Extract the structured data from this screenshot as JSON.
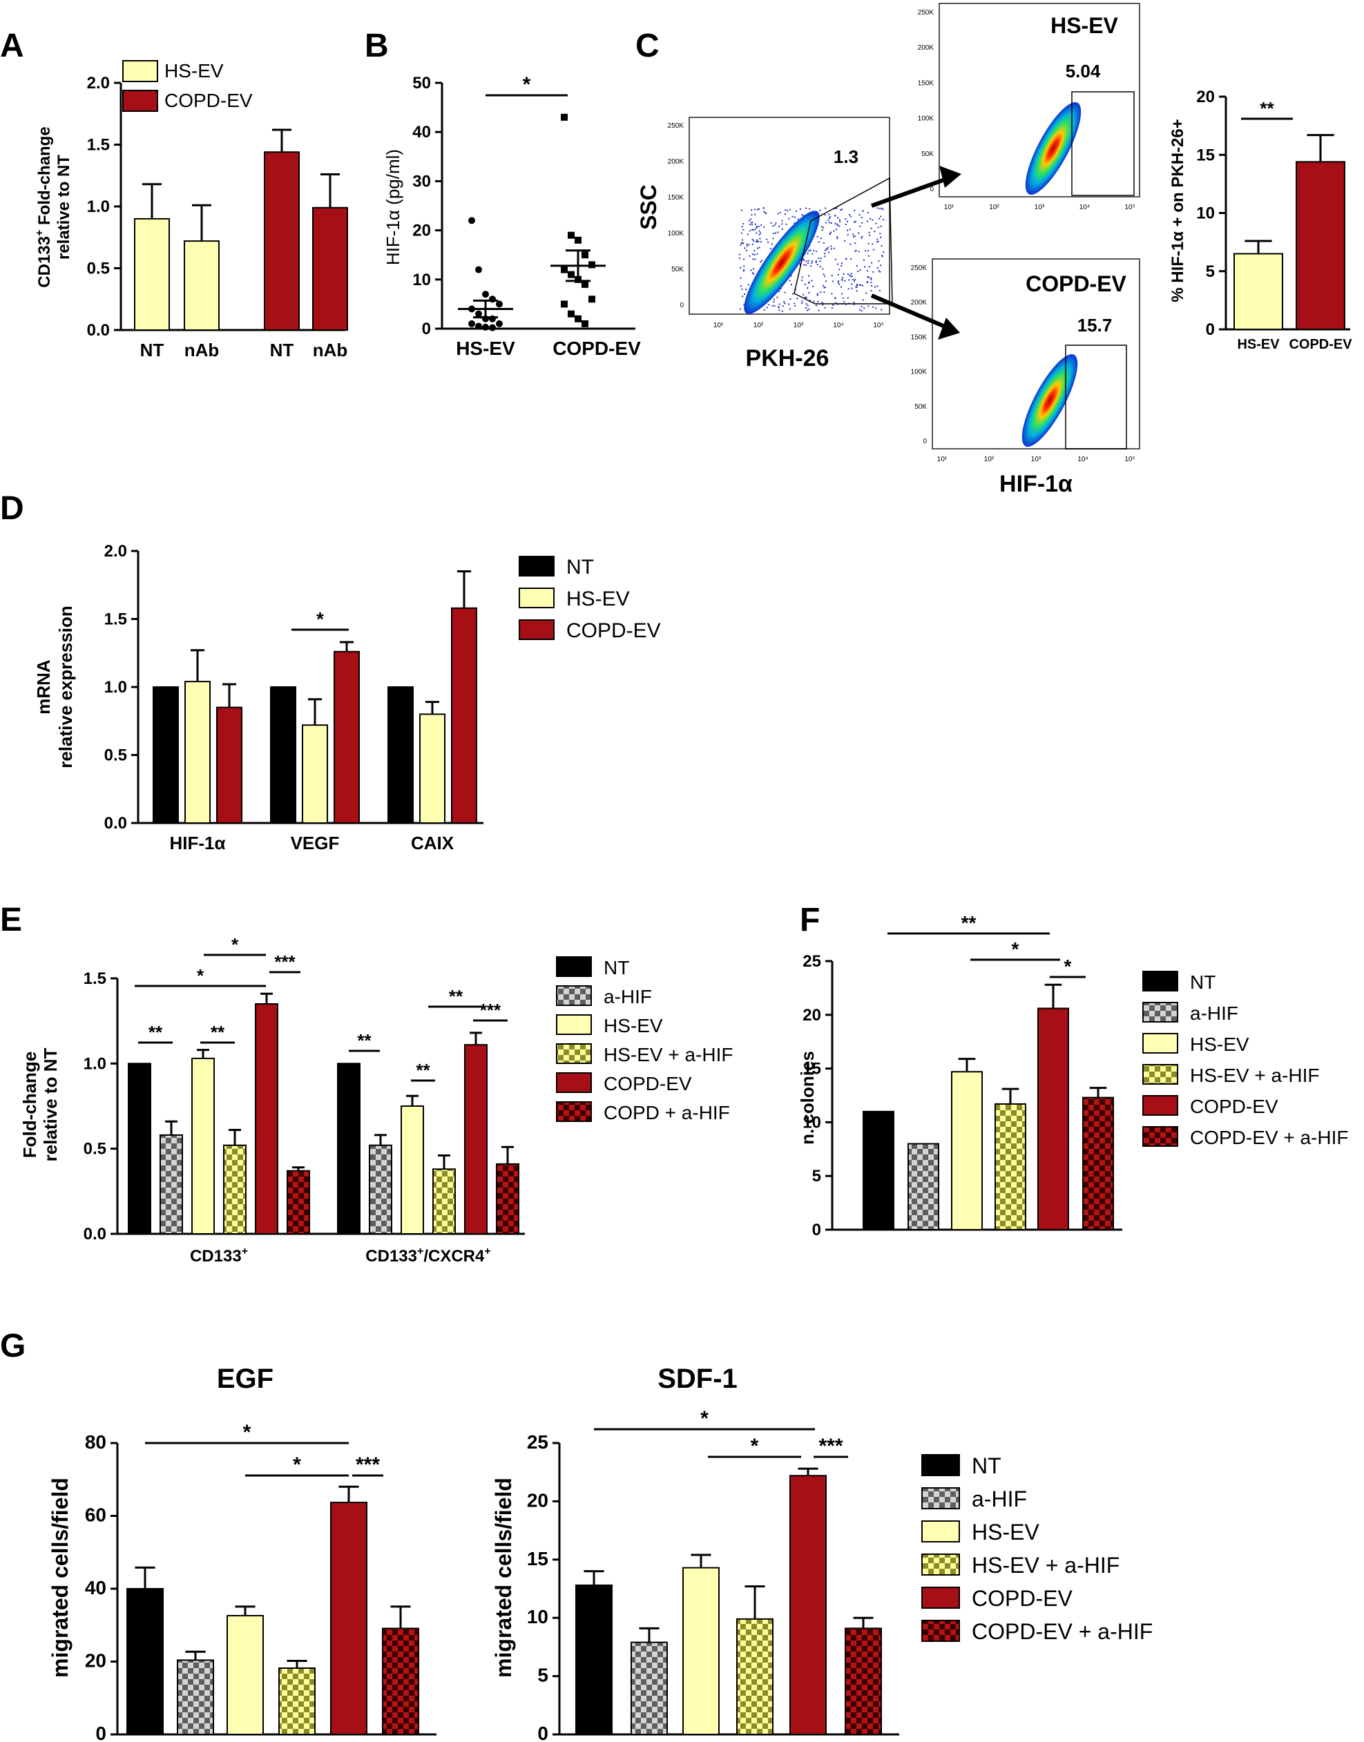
{
  "colors": {
    "nt": "#000000",
    "hs": "#ffffb3",
    "copd": "#a50f15",
    "checker_light": "#cfcfcf",
    "checker_dark": "#6a6a6a",
    "hs_check_a": "#ffff99",
    "hs_check_b": "#8b8b2a",
    "copd_check_a": "#b01010",
    "copd_check_b": "#3a0000"
  },
  "panels": {
    "A": {
      "letter": "A"
    },
    "B": {
      "letter": "B"
    },
    "C": {
      "letter": "C"
    },
    "D": {
      "letter": "D"
    },
    "E": {
      "letter": "E"
    },
    "F": {
      "letter": "F"
    },
    "G": {
      "letter": "G"
    }
  },
  "chart_data": [
    {
      "id": "A",
      "type": "bar",
      "ylabel_line1": "CD133",
      "ylabel_sup": "+",
      "ylabel_line1_rest": " Fold-change",
      "ylabel_line2": "relative to NT",
      "ylim": [
        0,
        2.0
      ],
      "ticks": [
        "0.0",
        "0.5",
        "1.0",
        "1.5",
        "2.0"
      ],
      "tick_values": [
        0,
        0.5,
        1.0,
        1.5,
        2.0
      ],
      "categories": [
        "NT",
        "nAb",
        "NT",
        "nAb"
      ],
      "bars": [
        {
          "value": 0.9,
          "err": 0.28,
          "series": "HS-EV"
        },
        {
          "value": 0.72,
          "err": 0.29,
          "series": "HS-EV"
        },
        {
          "value": 1.44,
          "err": 0.18,
          "series": "COPD-EV"
        },
        {
          "value": 0.99,
          "err": 0.27,
          "series": "COPD-EV"
        }
      ],
      "legend": [
        "HS-EV",
        "COPD-EV"
      ]
    },
    {
      "id": "B",
      "type": "scatter",
      "ylabel": "HIF-1α (pg/ml)",
      "ylim": [
        0,
        50
      ],
      "ticks": [
        "0",
        "10",
        "20",
        "30",
        "40",
        "50"
      ],
      "tick_values": [
        0,
        10,
        20,
        30,
        40,
        50
      ],
      "categories": [
        "HS-EV",
        "COPD-EV"
      ],
      "series": [
        {
          "name": "HS-EV",
          "mean": 4.0,
          "sem": 1.7,
          "values": [
            22,
            12,
            7,
            6,
            5,
            4,
            3,
            2,
            2,
            1,
            1,
            0.5,
            0.3,
            0.2
          ]
        },
        {
          "name": "COPD-EV",
          "mean": 12.8,
          "sem": 3.1,
          "values": [
            43,
            19,
            18,
            15,
            13,
            12,
            11,
            10,
            9,
            6,
            5,
            3,
            2,
            1
          ]
        }
      ],
      "significance": [
        {
          "label": "*"
        }
      ]
    },
    {
      "id": "C",
      "type": "bar",
      "ylabel": "% HIF-1α + on PKH-26+",
      "ylim": [
        0,
        20
      ],
      "ticks": [
        "0",
        "5",
        "10",
        "15",
        "20"
      ],
      "tick_values": [
        0,
        5,
        10,
        15,
        20
      ],
      "categories": [
        "HS-EV",
        "COPD-EV"
      ],
      "bars": [
        {
          "value": 6.5,
          "err": 1.1,
          "series": "HS-EV"
        },
        {
          "value": 14.4,
          "err": 2.3,
          "series": "COPD-EV"
        }
      ],
      "significance": [
        {
          "label": "**"
        }
      ],
      "flow": {
        "main": {
          "xlabel": "PKH-26",
          "ylabel": "SSC",
          "gate_value": "1.3",
          "yticks": [
            "250K",
            "200K",
            "150K",
            "100K",
            "50K",
            "0"
          ],
          "xticks": [
            "10¹",
            "10²",
            "10³",
            "10⁴",
            "10⁵"
          ]
        },
        "hs": {
          "title": "HS-EV",
          "gate_value": "5.04",
          "yticks": [
            "250K",
            "200K",
            "150K",
            "100K",
            "50K",
            "0"
          ],
          "xticks": [
            "10¹",
            "10²",
            "10³",
            "10⁴",
            "10⁵"
          ]
        },
        "copd": {
          "title": "COPD-EV",
          "gate_value": "15.7",
          "xlabel": "HIF-1α",
          "yticks": [
            "250K",
            "200K",
            "150K",
            "100K",
            "50K",
            "0"
          ],
          "xticks": [
            "10¹",
            "10²",
            "10³",
            "10⁴",
            "10⁵"
          ]
        }
      }
    },
    {
      "id": "D",
      "type": "bar",
      "ylabel_line1": "mRNA",
      "ylabel_line2": "relative expression",
      "ylim": [
        0,
        2.0
      ],
      "ticks": [
        "0.0",
        "0.5",
        "1.0",
        "1.5",
        "2.0"
      ],
      "tick_values": [
        0,
        0.5,
        1.0,
        1.5,
        2.0
      ],
      "categories": [
        "HIF-1α",
        "VEGF",
        "CAIX"
      ],
      "series": [
        {
          "name": "NT",
          "values": [
            1.0,
            1.0,
            1.0
          ],
          "err": [
            0,
            0,
            0
          ]
        },
        {
          "name": "HS-EV",
          "values": [
            1.04,
            0.72,
            0.8
          ],
          "err": [
            0.23,
            0.19,
            0.09
          ]
        },
        {
          "name": "COPD-EV",
          "values": [
            0.85,
            1.26,
            1.58
          ],
          "err": [
            0.17,
            0.07,
            0.27
          ]
        }
      ],
      "legend": [
        "NT",
        "HS-EV",
        "COPD-EV"
      ],
      "significance": [
        {
          "label": "*"
        }
      ]
    },
    {
      "id": "E",
      "type": "bar",
      "ylabel_line1": "Fold-change",
      "ylabel_line2": "relative to NT",
      "ylim": [
        0,
        1.5
      ],
      "ticks": [
        "0.0",
        "0.5",
        "1.0",
        "1.5"
      ],
      "tick_values": [
        0,
        0.5,
        1.0,
        1.5
      ],
      "categories": [
        {
          "base": "CD133",
          "sup": "+",
          "rest": "",
          "sup2": ""
        },
        {
          "base": "CD133",
          "sup": "+",
          "rest": "/CXCR4",
          "sup2": "+"
        }
      ],
      "series": [
        {
          "name": "NT",
          "values": [
            1.0,
            1.0
          ],
          "err": [
            0,
            0
          ]
        },
        {
          "name": "a-HIF",
          "values": [
            0.58,
            0.52
          ],
          "err": [
            0.08,
            0.06
          ]
        },
        {
          "name": "HS-EV",
          "values": [
            1.03,
            0.75
          ],
          "err": [
            0.05,
            0.06
          ]
        },
        {
          "name": "HS-EV + a-HIF",
          "values": [
            0.52,
            0.38
          ],
          "err": [
            0.09,
            0.08
          ]
        },
        {
          "name": "COPD-EV",
          "values": [
            1.35,
            1.11
          ],
          "err": [
            0.06,
            0.07
          ]
        },
        {
          "name": "COPD + a-HIF",
          "values": [
            0.37,
            0.41
          ],
          "err": [
            0.02,
            0.1
          ]
        }
      ],
      "legend": [
        "NT",
        "a-HIF",
        "HS-EV",
        "HS-EV + a-HIF",
        "COPD-EV",
        "COPD + a-HIF"
      ],
      "significance": [
        {
          "label": "**"
        },
        {
          "label": "**"
        },
        {
          "label": "*"
        },
        {
          "label": "*"
        },
        {
          "label": "***"
        },
        {
          "label": "**"
        },
        {
          "label": "**"
        },
        {
          "label": "**"
        },
        {
          "label": "***"
        }
      ]
    },
    {
      "id": "F",
      "type": "bar",
      "ylabel": "n. colonies",
      "ylim": [
        0,
        25
      ],
      "ticks": [
        "0",
        "5",
        "10",
        "15",
        "20",
        "25"
      ],
      "tick_values": [
        0,
        5,
        10,
        15,
        20,
        25
      ],
      "series": [
        {
          "name": "NT",
          "values": [
            11.0
          ],
          "err": [
            0
          ]
        },
        {
          "name": "a-HIF",
          "values": [
            8.0
          ],
          "err": [
            0
          ]
        },
        {
          "name": "HS-EV",
          "values": [
            14.7
          ],
          "err": [
            1.2
          ]
        },
        {
          "name": "HS-EV + a-HIF",
          "values": [
            11.7
          ],
          "err": [
            1.4
          ]
        },
        {
          "name": "COPD-EV",
          "values": [
            20.6
          ],
          "err": [
            2.2
          ]
        },
        {
          "name": "COPD-EV + a-HIF",
          "values": [
            12.3
          ],
          "err": [
            0.9
          ]
        }
      ],
      "legend": [
        "NT",
        "a-HIF",
        "HS-EV",
        "HS-EV + a-HIF",
        "COPD-EV",
        "COPD-EV + a-HIF"
      ],
      "significance": [
        {
          "label": "**"
        },
        {
          "label": "*"
        },
        {
          "label": "*"
        }
      ]
    },
    {
      "id": "G1",
      "type": "bar",
      "title": "EGF",
      "ylabel": "migrated cells/field",
      "ylim": [
        0,
        80
      ],
      "ticks": [
        "0",
        "20",
        "40",
        "60",
        "80"
      ],
      "tick_values": [
        0,
        20,
        40,
        60,
        80
      ],
      "series": [
        {
          "name": "NT",
          "values": [
            40.0
          ],
          "err": [
            5.8
          ]
        },
        {
          "name": "a-HIF",
          "values": [
            20.4
          ],
          "err": [
            2.3
          ]
        },
        {
          "name": "HS-EV",
          "values": [
            32.6
          ],
          "err": [
            2.5
          ]
        },
        {
          "name": "HS-EV + a-HIF",
          "values": [
            18.2
          ],
          "err": [
            2.0
          ]
        },
        {
          "name": "COPD-EV",
          "values": [
            63.7
          ],
          "err": [
            4.3
          ]
        },
        {
          "name": "COPD-EV + a-HIF",
          "values": [
            29.1
          ],
          "err": [
            6.0
          ]
        }
      ],
      "significance": [
        {
          "label": "*"
        },
        {
          "label": "*"
        },
        {
          "label": "***"
        }
      ]
    },
    {
      "id": "G2",
      "type": "bar",
      "title": "SDF-1",
      "ylabel": "migrated cells/field",
      "ylim": [
        0,
        25
      ],
      "ticks": [
        "0",
        "5",
        "10",
        "15",
        "20",
        "25"
      ],
      "tick_values": [
        0,
        5,
        10,
        15,
        20,
        25
      ],
      "series": [
        {
          "name": "NT",
          "values": [
            12.8
          ],
          "err": [
            1.2
          ]
        },
        {
          "name": "a-HIF",
          "values": [
            7.9
          ],
          "err": [
            1.2
          ]
        },
        {
          "name": "HS-EV",
          "values": [
            14.3
          ],
          "err": [
            1.1
          ]
        },
        {
          "name": "HS-EV + a-HIF",
          "values": [
            9.9
          ],
          "err": [
            2.8
          ]
        },
        {
          "name": "COPD-EV",
          "values": [
            22.2
          ],
          "err": [
            0.6
          ]
        },
        {
          "name": "COPD-EV + a-HIF",
          "values": [
            9.1
          ],
          "err": [
            0.9
          ]
        }
      ],
      "legend": [
        "NT",
        "a-HIF",
        "HS-EV",
        "HS-EV + a-HIF",
        "COPD-EV",
        "COPD-EV + a-HIF"
      ],
      "significance": [
        {
          "label": "*"
        },
        {
          "label": "*"
        },
        {
          "label": "***"
        }
      ]
    }
  ]
}
